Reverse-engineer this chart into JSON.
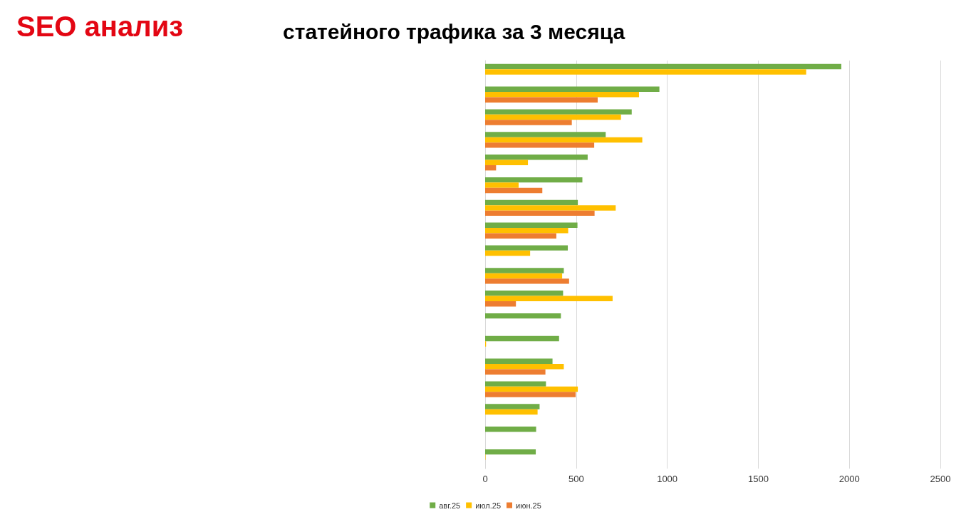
{
  "chart_data": {
    "type": "bar",
    "orientation": "horizontal",
    "title": "SEO анализ",
    "subtitle": "статейного трафика за 3 месяца",
    "categories": [
      null,
      null,
      null,
      null,
      null,
      null,
      null,
      null,
      null,
      null,
      null,
      null,
      null,
      null,
      null,
      null,
      null,
      null
    ],
    "series": [
      {
        "name": "авг.25",
        "color": "#70ad47",
        "values": [
          1956,
          957,
          805,
          662,
          563,
          534,
          509,
          507,
          454,
          432,
          428,
          416,
          406,
          370,
          334,
          299,
          280,
          278
        ]
      },
      {
        "name": "июл.25",
        "color": "#ffc000",
        "values": [
          1763,
          845,
          746,
          863,
          235,
          184,
          717,
          456,
          247,
          423,
          700,
          null,
          5,
          432,
          509,
          288,
          null,
          2
        ]
      },
      {
        "name": "июн.25",
        "color": "#ed7d31",
        "values": [
          null,
          618,
          476,
          599,
          60,
          314,
          601,
          391,
          null,
          461,
          169,
          null,
          null,
          331,
          497,
          null,
          null,
          null
        ]
      }
    ],
    "xlim": [
      0,
      2500
    ],
    "xticks": [
      0,
      500,
      1000,
      1500,
      2000,
      2500
    ],
    "grid": "x",
    "legend": "bottom"
  }
}
